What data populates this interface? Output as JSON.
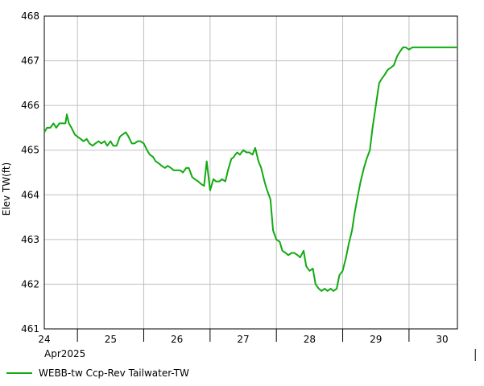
{
  "chart_data": {
    "type": "line",
    "ylabel": "Elev TW(ft)",
    "ylim": [
      461,
      468
    ],
    "yticks": [
      461,
      462,
      463,
      464,
      465,
      466,
      467,
      468
    ],
    "xlim": [
      24.0,
      30.23
    ],
    "xticks": [
      {
        "pos": 24,
        "label": "24"
      },
      {
        "pos": 25,
        "label": "25"
      },
      {
        "pos": 26,
        "label": "26"
      },
      {
        "pos": 27,
        "label": "27"
      },
      {
        "pos": 28,
        "label": "28"
      },
      {
        "pos": 29,
        "label": "29"
      },
      {
        "pos": 30,
        "label": "30"
      }
    ],
    "month_label": "Apr2025",
    "grid": true,
    "legend_position": "bottom-left",
    "series": [
      {
        "name": "WEBB-tw Ccp-Rev Tailwater-TW",
        "color": "#11aa11",
        "x": [
          24.0,
          24.04,
          24.09,
          24.14,
          24.18,
          24.23,
          24.27,
          24.32,
          24.34,
          24.37,
          24.41,
          24.46,
          24.5,
          24.55,
          24.59,
          24.64,
          24.68,
          24.73,
          24.77,
          24.82,
          24.86,
          24.91,
          24.95,
          25.0,
          25.04,
          25.09,
          25.14,
          25.18,
          25.23,
          25.27,
          25.32,
          25.36,
          25.41,
          25.45,
          25.5,
          25.55,
          25.59,
          25.64,
          25.68,
          25.73,
          25.77,
          25.82,
          25.86,
          25.91,
          25.95,
          26.0,
          26.05,
          26.09,
          26.14,
          26.18,
          26.23,
          26.27,
          26.32,
          26.36,
          26.41,
          26.45,
          26.5,
          26.55,
          26.59,
          26.64,
          26.68,
          26.73,
          26.77,
          26.82,
          26.86,
          26.88,
          26.91,
          26.95,
          27.0,
          27.05,
          27.09,
          27.14,
          27.18,
          27.23,
          27.27,
          27.32,
          27.36,
          27.41,
          27.45,
          27.5,
          27.55,
          27.59,
          27.64,
          27.68,
          27.73,
          27.77,
          27.82,
          27.86,
          27.91,
          27.95,
          28.0,
          28.05,
          28.09,
          28.14,
          28.18,
          28.23,
          28.27,
          28.32,
          28.36,
          28.41,
          28.45,
          28.5,
          28.55,
          28.59,
          28.64,
          28.68,
          28.73,
          28.77,
          28.82,
          28.86,
          28.91,
          28.95,
          29.0,
          29.05,
          29.09,
          29.14,
          29.18,
          29.23,
          29.27,
          29.32,
          29.36,
          29.41,
          29.45,
          29.5,
          29.55,
          29.59,
          29.64,
          29.68,
          29.73,
          29.77,
          29.82,
          29.86,
          29.91,
          29.95,
          30.0,
          30.05,
          30.09,
          30.14,
          30.18,
          30.23
        ],
        "values": [
          465.4,
          465.5,
          465.5,
          465.6,
          465.5,
          465.6,
          465.6,
          465.6,
          465.8,
          465.6,
          465.5,
          465.35,
          465.3,
          465.25,
          465.2,
          465.25,
          465.15,
          465.1,
          465.15,
          465.2,
          465.15,
          465.2,
          465.1,
          465.2,
          465.1,
          465.1,
          465.3,
          465.35,
          465.4,
          465.3,
          465.15,
          465.15,
          465.2,
          465.2,
          465.15,
          465.0,
          464.9,
          464.85,
          464.75,
          464.7,
          464.65,
          464.6,
          464.65,
          464.6,
          464.55,
          464.55,
          464.55,
          464.5,
          464.6,
          464.6,
          464.4,
          464.35,
          464.3,
          464.25,
          464.2,
          464.75,
          464.1,
          464.35,
          464.3,
          464.3,
          464.35,
          464.3,
          464.55,
          464.8,
          464.85,
          464.9,
          464.95,
          464.9,
          465.0,
          464.95,
          464.95,
          464.9,
          465.05,
          464.75,
          464.6,
          464.3,
          464.1,
          463.9,
          463.2,
          463.0,
          462.95,
          462.75,
          462.7,
          462.65,
          462.7,
          462.7,
          462.65,
          462.6,
          462.75,
          462.4,
          462.3,
          462.35,
          462.0,
          461.9,
          461.85,
          461.9,
          461.85,
          461.9,
          461.85,
          461.9,
          462.2,
          462.3,
          462.6,
          462.9,
          463.2,
          463.6,
          464.0,
          464.3,
          464.6,
          464.8,
          465.0,
          465.5,
          466.0,
          466.5,
          466.6,
          466.7,
          466.8,
          466.85,
          466.9,
          467.1,
          467.2,
          467.3,
          467.3,
          467.25,
          467.3,
          467.3,
          467.3,
          467.3,
          467.3,
          467.3,
          467.3,
          467.3,
          467.3,
          467.3,
          467.3,
          467.3,
          467.3,
          467.3,
          467.3,
          467.3
        ]
      }
    ]
  },
  "colors": {
    "series": "#11aa11",
    "grid": "#c0c0c0",
    "axis": "#000000"
  }
}
